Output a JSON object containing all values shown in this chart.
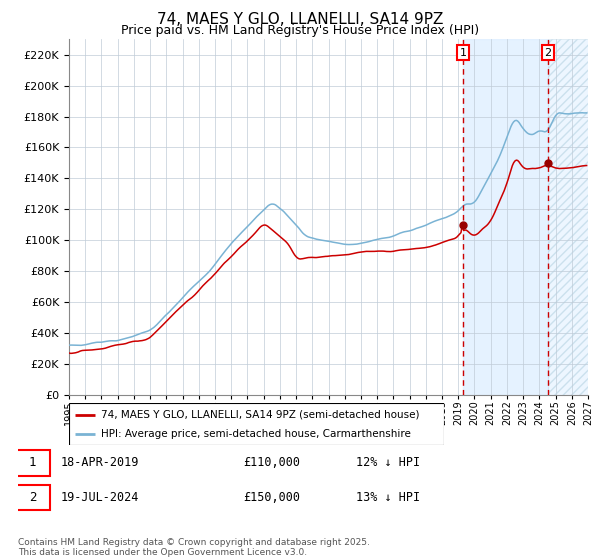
{
  "title": "74, MAES Y GLO, LLANELLI, SA14 9PZ",
  "subtitle": "Price paid vs. HM Land Registry's House Price Index (HPI)",
  "ylim": [
    0,
    230000
  ],
  "yticks": [
    0,
    20000,
    40000,
    60000,
    80000,
    100000,
    120000,
    140000,
    160000,
    180000,
    200000,
    220000
  ],
  "purchase1_year": 2019.29,
  "purchase1_price": 110000,
  "purchase2_year": 2024.54,
  "purchase2_price": 150000,
  "hpi_color": "#7ab3d4",
  "price_color": "#cc0000",
  "marker_color": "#990000",
  "bg_color": "#ffffff",
  "grid_color": "#c0ccd8",
  "shade_color": "#ddeeff",
  "legend_label_price": "74, MAES Y GLO, LLANELLI, SA14 9PZ (semi-detached house)",
  "legend_label_hpi": "HPI: Average price, semi-detached house, Carmarthenshire",
  "annotation1": "18-APR-2019",
  "annotation1_price": "£110,000",
  "annotation1_hpi": "12% ↓ HPI",
  "annotation2": "19-JUL-2024",
  "annotation2_price": "£150,000",
  "annotation2_hpi": "13% ↓ HPI",
  "footnote": "Contains HM Land Registry data © Crown copyright and database right 2025.\nThis data is licensed under the Open Government Licence v3.0."
}
